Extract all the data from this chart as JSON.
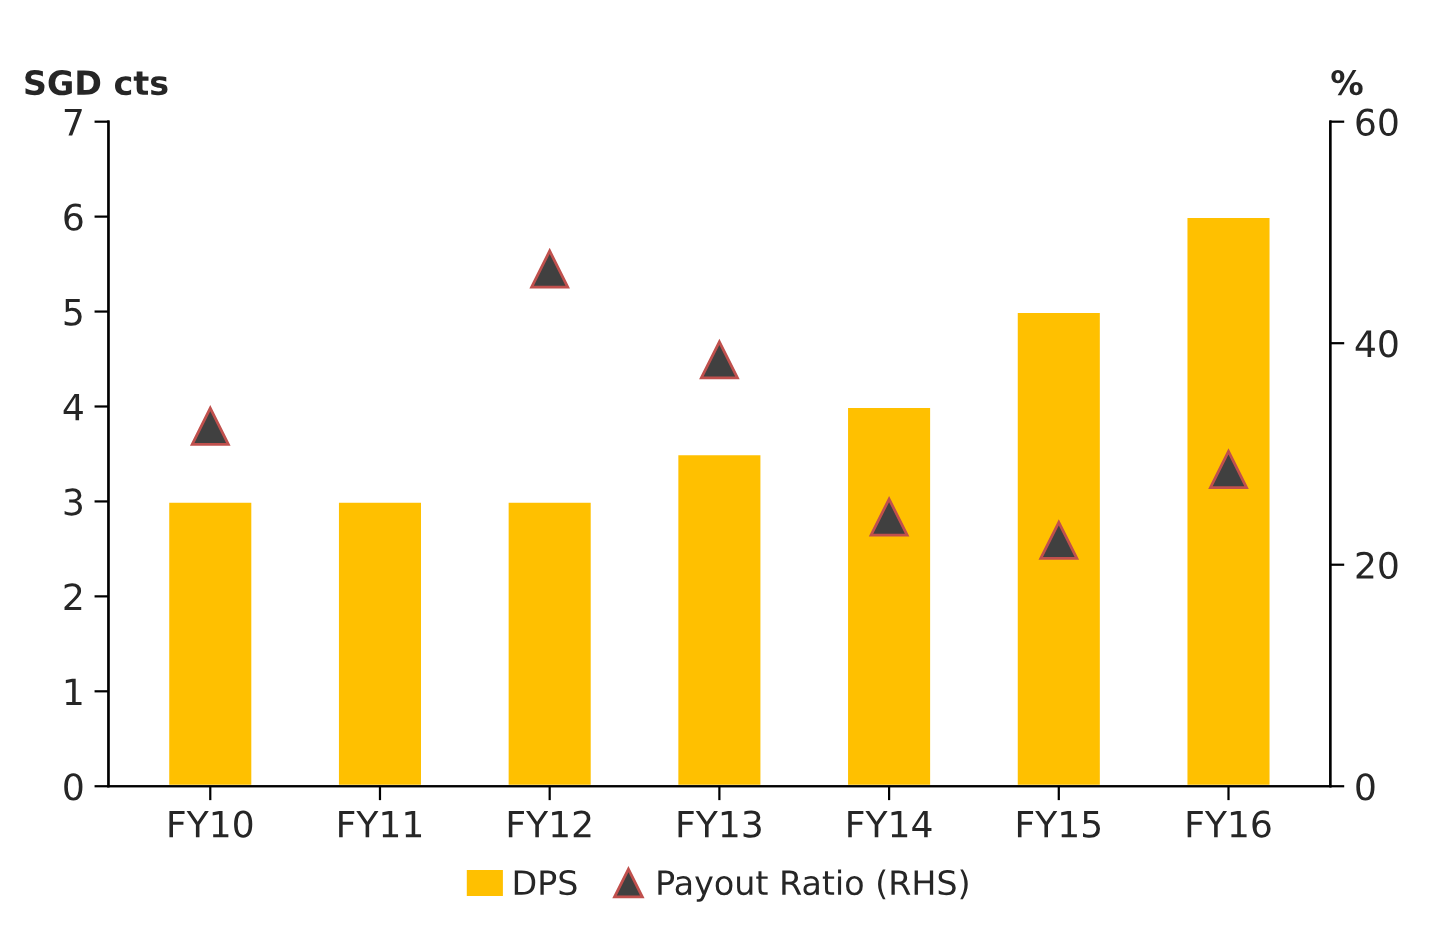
{
  "chart_data": {
    "type": "bar",
    "categories": [
      "FY10",
      "FY11",
      "FY12",
      "FY13",
      "FY14",
      "FY15",
      "FY16"
    ],
    "ylabel": "SGD cts",
    "y2label": "%",
    "series": [
      {
        "name": "DPS",
        "color": "#ffc000",
        "values": [
          3,
          3,
          3,
          3.5,
          4,
          5,
          6
        ]
      },
      {
        "name": "Payout Ratio (RHS)",
        "type": "scatter",
        "axis": "y2",
        "color": "#404040",
        "marker": "triangle",
        "values": [
          32.5,
          null,
          46.7,
          38.5,
          24.3,
          22.2,
          28.6
        ]
      }
    ],
    "ylim": [
      0,
      7
    ],
    "yticks": [
      0,
      1,
      2,
      3,
      4,
      5,
      6,
      7
    ],
    "y2lim": [
      0,
      60
    ],
    "y2ticks": [
      0,
      20,
      40,
      60
    ],
    "grid": false,
    "legend": "bottom"
  }
}
